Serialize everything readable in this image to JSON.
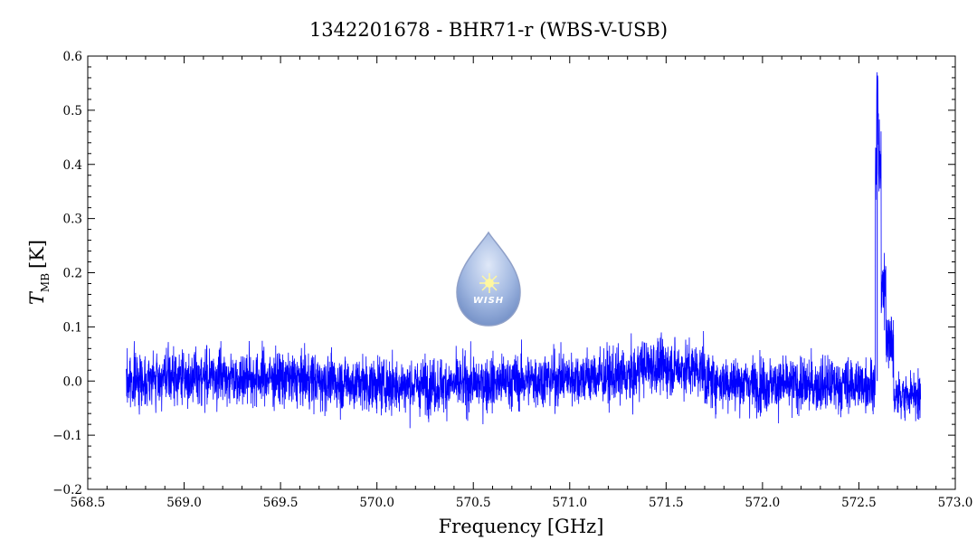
{
  "chart_data": {
    "type": "line",
    "title": "1342201678 - BHR71-r (WBS-V-USB)",
    "xlabel": "Frequency [GHz]",
    "ylabel_main": "T",
    "ylabel_sub": "MB",
    "ylabel_unit": "[K]",
    "xlim": [
      568.5,
      573.0
    ],
    "ylim": [
      -0.2,
      0.6
    ],
    "x_ticks": [
      "568.5",
      "569.0",
      "569.5",
      "570.0",
      "570.5",
      "571.0",
      "571.5",
      "572.0",
      "572.5",
      "573.0"
    ],
    "y_ticks": [
      "−0.2",
      "−0.1",
      "0.0",
      "0.1",
      "0.2",
      "0.3",
      "0.4",
      "0.5",
      "0.6"
    ],
    "grid": false,
    "series": [
      {
        "color": "#0000ff",
        "x_range": [
          568.7,
          572.82
        ],
        "baseline": 0.0,
        "noise_rms": 0.025,
        "features": [
          {
            "x": 572.595,
            "peak": 0.555
          },
          {
            "x": 572.605,
            "peak": 0.47
          },
          {
            "x": 572.63,
            "peak": 0.23
          },
          {
            "x": 572.66,
            "peak": 0.07
          }
        ],
        "tail_level": -0.03
      }
    ]
  },
  "logo": {
    "text": "WISH",
    "color": "#8fa8d8"
  }
}
